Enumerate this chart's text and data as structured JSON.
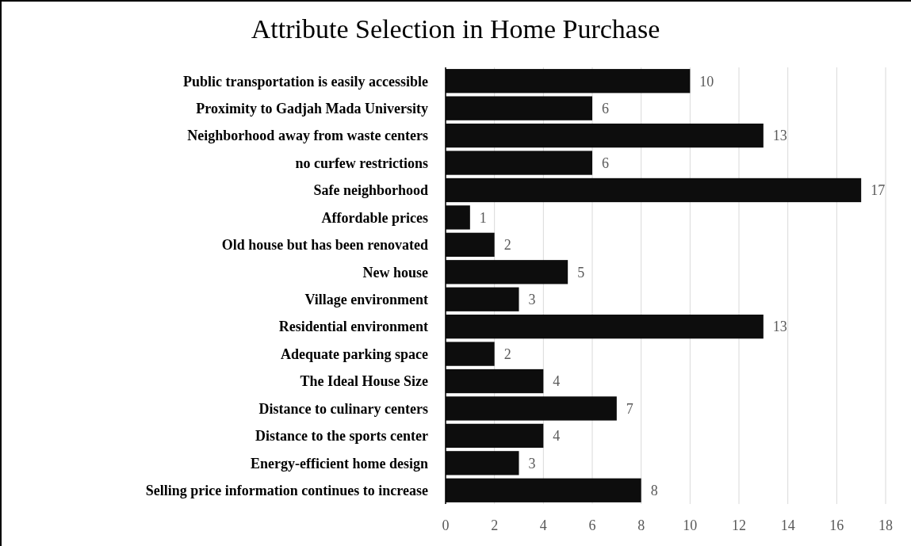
{
  "chart_data": {
    "type": "bar",
    "orientation": "horizontal",
    "title": "Attribute Selection in Home Purchase",
    "categories": [
      "Public transportation is easily accessible",
      "Proximity to Gadjah Mada University",
      "Neighborhood away from waste centers",
      "no curfew restrictions",
      "Safe neighborhood",
      "Affordable prices",
      "Old house but has been renovated",
      "New house",
      "Village environment",
      "Residential environment",
      "Adequate parking space",
      "The Ideal House Size",
      "Distance to culinary centers",
      "Distance to the sports center",
      "Energy-efficient home design",
      "Selling price information continues to increase"
    ],
    "values": [
      10,
      6,
      13,
      6,
      17,
      1,
      2,
      5,
      3,
      13,
      2,
      4,
      7,
      4,
      3,
      8
    ],
    "color": "#0d0d0d",
    "xlim": [
      0,
      18
    ],
    "xticks": [
      0,
      2,
      4,
      6,
      8,
      10,
      12,
      14,
      16,
      18
    ],
    "grid": "x",
    "data_labels": true
  }
}
